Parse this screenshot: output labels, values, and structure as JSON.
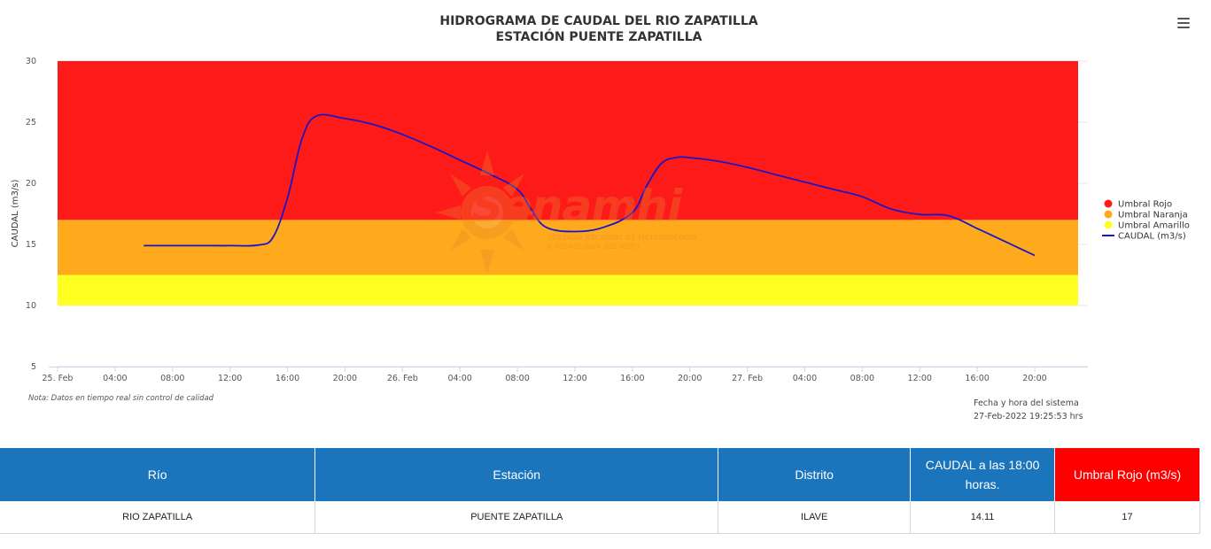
{
  "chart_data": {
    "type": "line",
    "title": "HIDROGRAMA DE CAUDAL DEL RIO ZAPATILLA",
    "subtitle": "ESTACIÓN PUENTE ZAPATILLA",
    "ylabel": "CAUDAL (m3/s)",
    "xlabel": "",
    "ylim": [
      5,
      30
    ],
    "yticks": [
      5,
      10,
      15,
      20,
      25,
      30
    ],
    "x_range_hours": [
      0,
      72
    ],
    "xticks": [
      {
        "h": 0,
        "label": "25. Feb"
      },
      {
        "h": 4,
        "label": "04:00"
      },
      {
        "h": 8,
        "label": "08:00"
      },
      {
        "h": 12,
        "label": "12:00"
      },
      {
        "h": 16,
        "label": "16:00"
      },
      {
        "h": 20,
        "label": "20:00"
      },
      {
        "h": 24,
        "label": "26. Feb"
      },
      {
        "h": 28,
        "label": "04:00"
      },
      {
        "h": 32,
        "label": "08:00"
      },
      {
        "h": 36,
        "label": "12:00"
      },
      {
        "h": 40,
        "label": "16:00"
      },
      {
        "h": 44,
        "label": "20:00"
      },
      {
        "h": 48,
        "label": "27. Feb"
      },
      {
        "h": 52,
        "label": "04:00"
      },
      {
        "h": 56,
        "label": "08:00"
      },
      {
        "h": 60,
        "label": "12:00"
      },
      {
        "h": 64,
        "label": "16:00"
      },
      {
        "h": 68,
        "label": "20:00"
      }
    ],
    "bands": [
      {
        "name": "Umbral Rojo",
        "from": 17,
        "to": 30,
        "color": "#ff1a1a"
      },
      {
        "name": "Umbral Naranja",
        "from": 12.5,
        "to": 17,
        "color": "#ffaa1c"
      },
      {
        "name": "Umbral Amarillo",
        "from": 10,
        "to": 12.5,
        "color": "#ffff22"
      }
    ],
    "series": [
      {
        "name": "CAUDAL (m3/s)",
        "color": "#1a16c8",
        "points": [
          [
            6,
            14.9
          ],
          [
            8,
            14.9
          ],
          [
            10,
            14.9
          ],
          [
            12,
            14.9
          ],
          [
            14,
            14.95
          ],
          [
            15,
            15.6
          ],
          [
            16,
            18.8
          ],
          [
            17,
            23.6
          ],
          [
            18,
            25.5
          ],
          [
            20,
            25.3
          ],
          [
            22,
            24.8
          ],
          [
            24,
            24.0
          ],
          [
            26,
            23.0
          ],
          [
            28,
            21.9
          ],
          [
            30,
            20.8
          ],
          [
            32,
            19.5
          ],
          [
            33,
            17.8
          ],
          [
            34,
            16.4
          ],
          [
            36,
            16.05
          ],
          [
            38,
            16.4
          ],
          [
            40,
            17.6
          ],
          [
            41,
            19.8
          ],
          [
            42,
            21.6
          ],
          [
            43,
            22.1
          ],
          [
            44,
            22.1
          ],
          [
            46,
            21.8
          ],
          [
            48,
            21.3
          ],
          [
            50,
            20.7
          ],
          [
            52,
            20.1
          ],
          [
            54,
            19.5
          ],
          [
            56,
            18.9
          ],
          [
            58,
            17.9
          ],
          [
            60,
            17.45
          ],
          [
            62,
            17.35
          ],
          [
            64,
            16.3
          ],
          [
            66,
            15.2
          ],
          [
            68,
            14.1
          ]
        ]
      }
    ],
    "legend": [
      {
        "label": "Umbral Rojo",
        "color": "#ff1a1a",
        "kind": "dot"
      },
      {
        "label": "Umbral Naranja",
        "color": "#ffaa1c",
        "kind": "dot"
      },
      {
        "label": "Umbral Amarillo",
        "color": "#ffff22",
        "kind": "dot"
      },
      {
        "label": "CAUDAL (m3/s)",
        "color": "#1a16c8",
        "kind": "line"
      }
    ],
    "legend_position": "right",
    "grid": "horizontal"
  },
  "watermark": {
    "brand": "Senamhi",
    "line1": "SERVICIO NACIONAL DE METEOROLOGÍA",
    "line2": "E HIDROLOGÍA DEL PERÚ"
  },
  "note": "Nota: Datos en tiempo real sin control de calidad",
  "system_time": {
    "label": "Fecha y hora del sistema",
    "value": "27-Feb-2022 19:25:53 hrs"
  },
  "menu_icon": "hamburger-menu-icon",
  "table": {
    "headers": [
      "Río",
      "Estación",
      "Distrito",
      "CAUDAL a las 18:00 horas.",
      "Umbral Rojo (m3/s)"
    ],
    "rows": [
      [
        "RIO ZAPATILLA",
        "PUENTE ZAPATILLA",
        "ILAVE",
        "14.11",
        "17"
      ]
    ]
  }
}
